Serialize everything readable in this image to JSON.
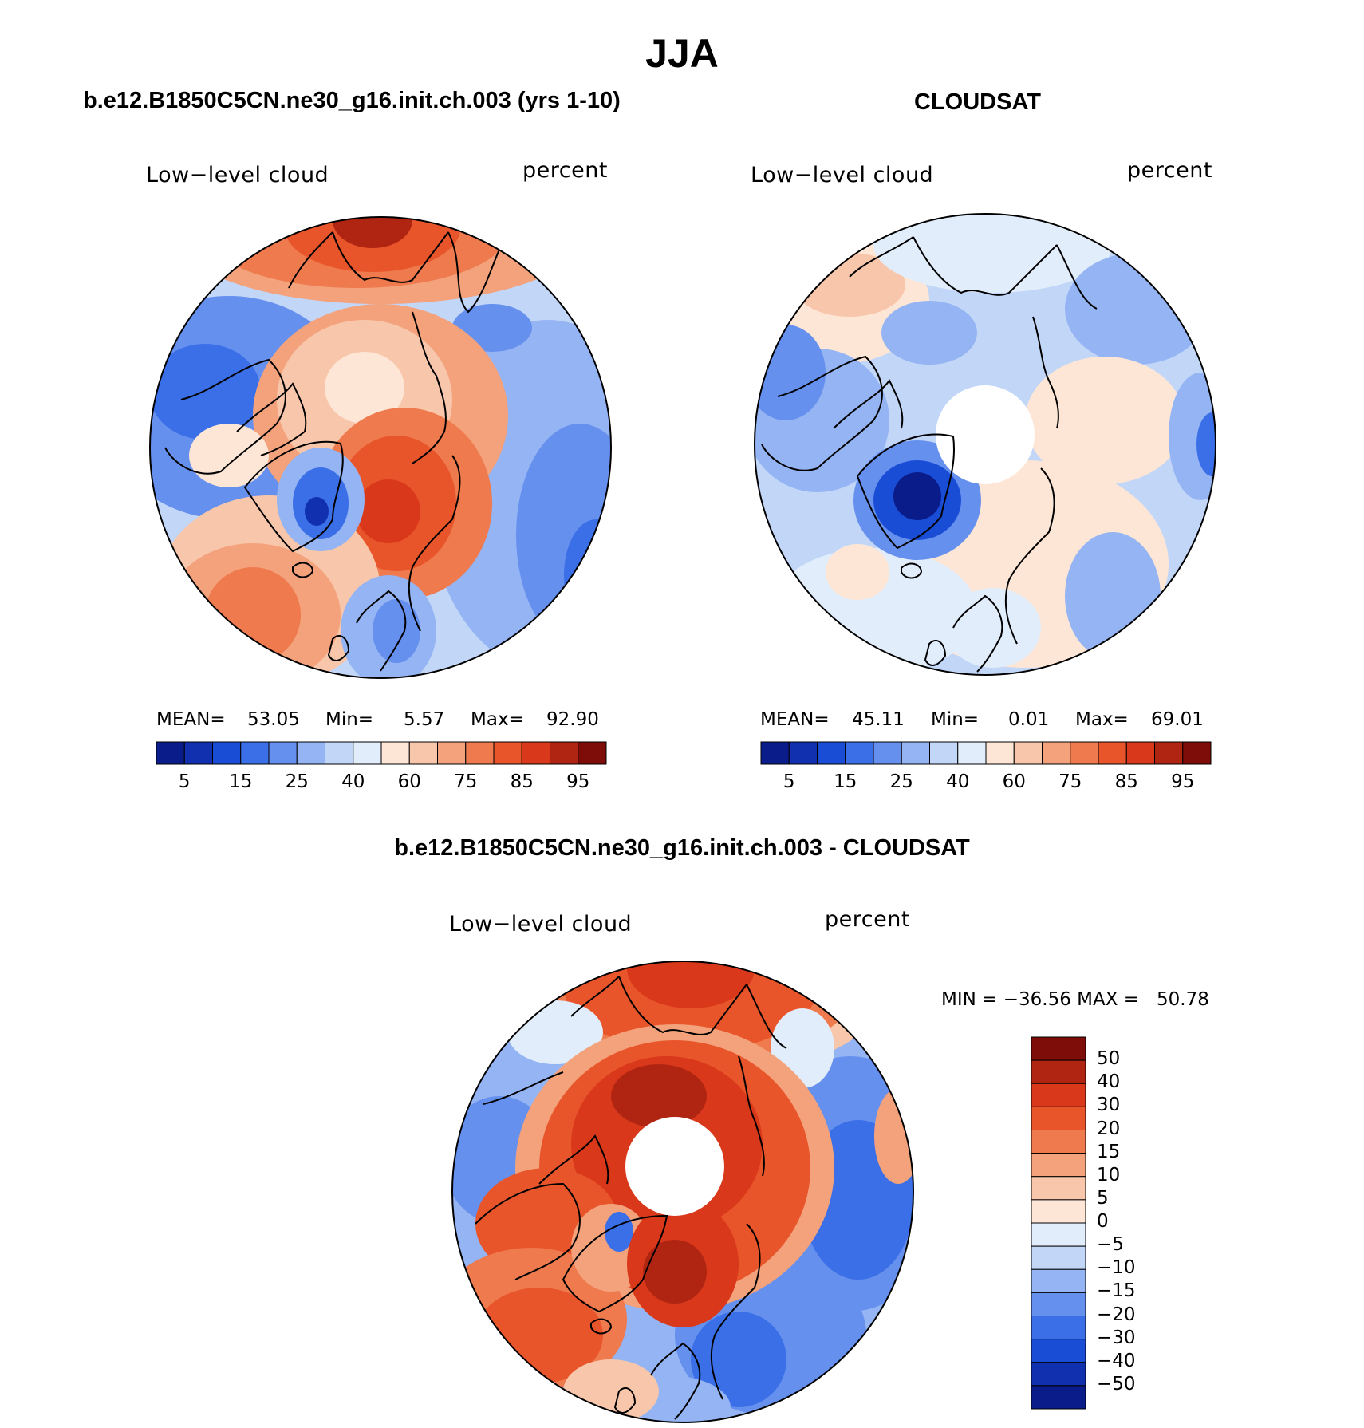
{
  "figure": {
    "season_title": "JJA"
  },
  "panels": [
    {
      "id": "model",
      "title": "b.e12.B1850C5CN.ne30_g16.init.ch.003 (yrs 1-10)",
      "left_label": "Low−level cloud",
      "right_label": "percent",
      "stats": {
        "mean_label": "MEAN=",
        "mean": "53.05",
        "min_label": "Min=",
        "min": "5.57",
        "max_label": "Max=",
        "max": "92.90"
      },
      "colorbar_ticks": [
        "5",
        "15",
        "25",
        "40",
        "60",
        "75",
        "85",
        "95"
      ]
    },
    {
      "id": "obs",
      "title": "CLOUDSAT",
      "left_label": "Low−level cloud",
      "right_label": "percent",
      "stats": {
        "mean_label": "MEAN=",
        "mean": "45.11",
        "min_label": "Min=",
        "min": "0.01",
        "max_label": "Max=",
        "max": "69.01"
      },
      "colorbar_ticks": [
        "5",
        "15",
        "25",
        "40",
        "60",
        "75",
        "85",
        "95"
      ]
    },
    {
      "id": "diff",
      "title": "b.e12.B1850C5CN.ne30_g16.init.ch.003 - CLOUDSAT",
      "left_label": "Low−level cloud",
      "right_label": "percent",
      "minmax": "MIN = −36.56 MAX =   50.78",
      "colorbar_ticks": [
        "50",
        "40",
        "30",
        "20",
        "15",
        "10",
        "5",
        "0",
        "−5",
        "−10",
        "−15",
        "−20",
        "−30",
        "−40",
        "−50"
      ]
    }
  ],
  "colorscales": {
    "abs": [
      "#0a1b8a",
      "#1030b0",
      "#1a4dd6",
      "#3b6fe8",
      "#6690ee",
      "#94b4f3",
      "#c2d6f8",
      "#e2edfb",
      "#fde6d6",
      "#f8c6aa",
      "#f3a27c",
      "#ee7a4e",
      "#e9552a",
      "#d9381a",
      "#b02512",
      "#7e0c08"
    ],
    "diff": [
      "#7e0c08",
      "#b02512",
      "#d9381a",
      "#e9552a",
      "#ee7a4e",
      "#f3a27c",
      "#f8c6aa",
      "#fde6d6",
      "#e2edfb",
      "#c2d6f8",
      "#94b4f3",
      "#6690ee",
      "#3b6fe8",
      "#1a4dd6",
      "#1030b0",
      "#0a1b8a"
    ]
  }
}
